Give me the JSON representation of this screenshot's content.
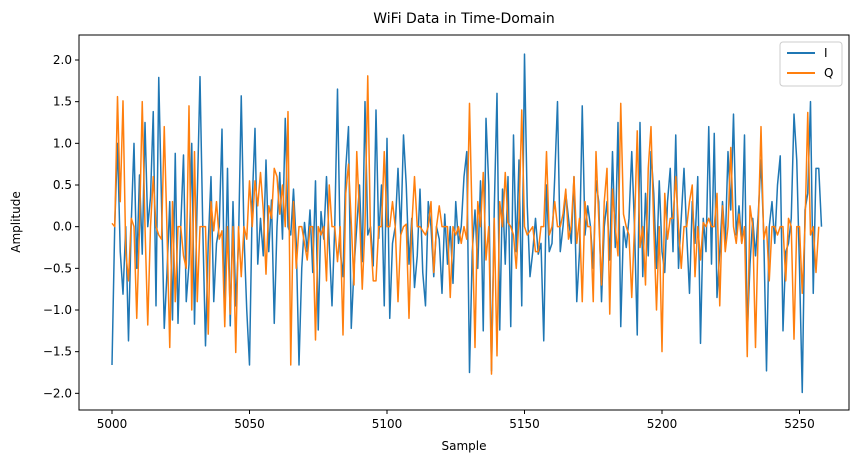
{
  "chart_data": {
    "type": "line",
    "title": "WiFi Data in Time-Domain",
    "xlabel": "Sample",
    "ylabel": "Amplitude",
    "xlim": [
      4988,
      5268
    ],
    "ylim": [
      -2.2,
      2.3
    ],
    "xticks": [
      5000,
      5050,
      5100,
      5150,
      5200,
      5250
    ],
    "yticks": [
      -2.0,
      -1.5,
      -1.0,
      -0.5,
      0.0,
      0.5,
      1.0,
      1.5,
      2.0
    ],
    "grid": false,
    "legend_position": "top-right",
    "series": [
      {
        "name": "I",
        "color": "#1f77b4",
        "x_start": 5000,
        "values": [
          -1.66,
          0.02,
          1.0,
          -0.3,
          -0.81,
          0.0,
          -1.37,
          0.05,
          1.0,
          -0.5,
          0.62,
          -0.33,
          1.25,
          0.0,
          0.35,
          1.38,
          -0.95,
          1.79,
          0.3,
          -1.22,
          -0.55,
          0.3,
          -1.12,
          0.88,
          -1.16,
          0.0,
          0.86,
          -0.9,
          -0.45,
          1.0,
          -1.17,
          0.35,
          1.8,
          0.0,
          -1.43,
          -0.2,
          0.6,
          -0.9,
          -0.2,
          0.0,
          1.17,
          -1.0,
          0.7,
          -1.19,
          0.3,
          -0.95,
          -0.2,
          1.57,
          -0.1,
          -1.0,
          -1.66,
          0.3,
          1.18,
          -0.45,
          0.1,
          -0.35,
          0.8,
          -0.3,
          0.32,
          -1.16,
          0.0,
          0.65,
          -0.15,
          1.3,
          0.0,
          -0.1,
          0.45,
          -0.2,
          -1.66,
          -0.5,
          0.05,
          -0.3,
          0.2,
          -0.55,
          0.55,
          -1.24,
          0.18,
          -0.15,
          0.6,
          -0.2,
          -0.95,
          0.0,
          1.65,
          -0.3,
          -0.6,
          0.7,
          1.2,
          -1.22,
          -0.5,
          0.0,
          0.5,
          -0.42,
          1.5,
          -0.1,
          0.0,
          -0.47,
          1.4,
          -0.14,
          0.5,
          -0.95,
          1.06,
          -1.1,
          -0.2,
          0.0,
          0.7,
          -0.1,
          1.1,
          0.5,
          -0.45,
          0.1,
          -0.73,
          -0.35,
          0.45,
          -0.55,
          -0.95,
          0.3,
          0.0,
          -0.6,
          0.0,
          -0.15,
          -0.8,
          0.15,
          -0.45,
          0.0,
          -0.68,
          0.3,
          -0.2,
          0.0,
          0.6,
          0.9,
          -1.75,
          -0.3,
          0.2,
          -0.5,
          0.55,
          -1.25,
          1.3,
          0.5,
          -1.73,
          0.2,
          1.6,
          -1.24,
          0.45,
          -0.45,
          0.6,
          -1.2,
          1.1,
          -0.3,
          0.8,
          -0.95,
          2.07,
          0.25,
          -0.6,
          -0.3,
          0.1,
          -0.33,
          -0.2,
          -1.37,
          0.5,
          -0.3,
          -0.2,
          0.6,
          1.5,
          -0.3,
          0.0,
          0.4,
          0.1,
          -0.2,
          0.6,
          -0.9,
          -0.3,
          1.45,
          -0.1,
          0.25,
          0.0,
          -0.5,
          0.55,
          0.3,
          -0.9,
          0.0,
          0.3,
          -0.4,
          0.9,
          -0.25,
          1.25,
          -1.2,
          0.0,
          -0.25,
          0.1,
          0.9,
          0.0,
          -1.3,
          1.25,
          -0.6,
          0.4,
          -0.35,
          0.9,
          0.4,
          -0.5,
          0.55,
          -0.3,
          -0.55,
          0.3,
          0.7,
          -0.3,
          1.1,
          -0.5,
          0.1,
          0.7,
          -0.1,
          -0.8,
          0.3,
          -0.2,
          0.6,
          -1.4,
          0.1,
          -0.3,
          1.2,
          -0.45,
          1.12,
          -0.85,
          -0.3,
          0.3,
          -0.2,
          0.9,
          0.2,
          1.35,
          -0.1,
          0.25,
          -0.2,
          1.1,
          -1.3,
          -0.45,
          0.1,
          -0.35,
          0.15,
          0.8,
          -0.1,
          -1.73,
          0.0,
          0.3,
          -0.2,
          0.5,
          0.85,
          -1.25,
          -0.3,
          -0.2,
          0.1,
          1.35,
          0.8,
          -0.5,
          -1.99,
          0.2,
          0.4,
          1.5,
          -0.8,
          0.7,
          0.7,
          0.0
        ]
      },
      {
        "name": "Q",
        "color": "#ff7f0e",
        "x_start": 5000,
        "values": [
          0.04,
          0.0,
          1.56,
          0.3,
          1.51,
          -0.3,
          -0.65,
          0.1,
          0.0,
          -1.1,
          0.0,
          1.5,
          0.0,
          -1.18,
          0.0,
          0.6,
          0.0,
          -0.1,
          -0.15,
          1.2,
          -0.05,
          -1.45,
          0.3,
          -0.9,
          0.0,
          0.0,
          -0.35,
          -0.5,
          1.45,
          -1.0,
          0.9,
          -0.9,
          0.0,
          0.0,
          0.0,
          -1.29,
          0.3,
          -0.05,
          0.3,
          -0.15,
          -0.05,
          -1.2,
          0.0,
          -1.05,
          0.0,
          -1.51,
          0.0,
          -0.6,
          0.0,
          -0.15,
          0.55,
          0.0,
          0.55,
          0.25,
          0.65,
          0.2,
          -0.57,
          0.25,
          0.1,
          0.7,
          0.6,
          0.15,
          0.5,
          0.0,
          1.38,
          -1.66,
          0.3,
          -0.5,
          0.0,
          0.0,
          -0.2,
          -0.4,
          0.0,
          0.0,
          -1.36,
          0.0,
          -0.1,
          0.0,
          -0.65,
          0.5,
          0.0,
          0.0,
          -0.42,
          0.0,
          -1.3,
          0.4,
          0.75,
          0.05,
          -0.7,
          0.9,
          0.15,
          -0.75,
          0.0,
          1.81,
          -0.1,
          -0.65,
          -0.65,
          0.0,
          0.0,
          0.9,
          0.0,
          0.0,
          0.3,
          0.0,
          -0.9,
          -0.1,
          0.0,
          0.03,
          -1.1,
          0.0,
          0.6,
          0.0,
          0.0,
          -0.05,
          -0.1,
          0.0,
          0.3,
          -0.55,
          0.0,
          0.25,
          0.0,
          0.0,
          0.0,
          -0.85,
          0.0,
          -0.1,
          0.0,
          -0.2,
          0.0,
          -0.15,
          1.48,
          0.0,
          -1.45,
          0.3,
          0.0,
          0.65,
          -0.4,
          0.0,
          -1.77,
          0.1,
          -1.55,
          0.3,
          0.0,
          0.65,
          0.05,
          0.0,
          -0.1,
          -0.5,
          0.1,
          1.4,
          0.0,
          -0.1,
          -0.05,
          0.0,
          -0.3,
          -0.3,
          0.0,
          0.0,
          0.9,
          -0.1,
          0.0,
          0.3,
          0.0,
          0.0,
          0.15,
          0.45,
          -0.15,
          0.0,
          0.6,
          -0.2,
          0.1,
          -0.9,
          0.3,
          0.0,
          0.0,
          -0.9,
          0.9,
          0.1,
          -0.7,
          0.3,
          0.7,
          -1.05,
          0.45,
          0.0,
          -0.35,
          1.48,
          0.15,
          0.0,
          -0.1,
          -0.85,
          0.0,
          1.15,
          -0.25,
          0.0,
          -0.7,
          0.7,
          1.2,
          0.0,
          -1.0,
          0.0,
          -1.5,
          0.4,
          -0.15,
          0.1,
          0.1,
          0.6,
          0.0,
          -0.5,
          0.0,
          0.0,
          0.3,
          0.5,
          -0.6,
          0.0,
          -0.4,
          0.05,
          0.0,
          0.1,
          0.0,
          0.0,
          0.4,
          -0.95,
          0.25,
          -0.3,
          0.0,
          0.95,
          0.0,
          -0.2,
          0.15,
          -0.2,
          0.0,
          -1.56,
          0.25,
          0.0,
          -1.45,
          0.0,
          1.2,
          -0.15,
          0.0,
          -0.65,
          0.0,
          0.0,
          -0.1,
          0.0,
          0.0,
          -0.65,
          0.1,
          0.0,
          -1.35,
          0.0,
          0.0,
          -0.8,
          0.0,
          1.37,
          -0.1,
          0.0,
          -0.55,
          0.0
        ]
      }
    ]
  }
}
